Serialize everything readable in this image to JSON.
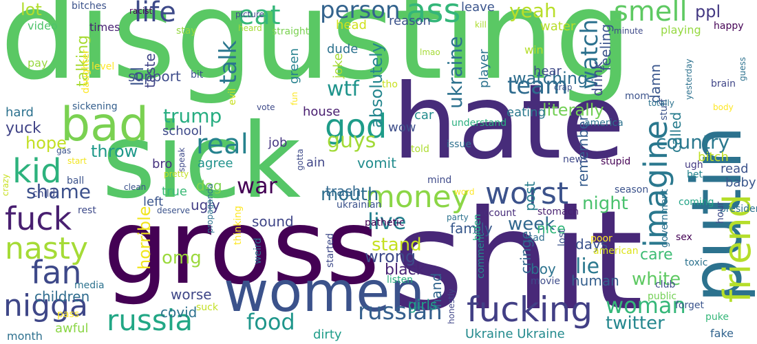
{
  "words": [
    {
      "text": "disgusting",
      "color": "#5ac864"
    },
    {
      "text": "hate",
      "color": "#472c7a"
    },
    {
      "text": "sick",
      "color": "#56c667"
    },
    {
      "text": "gross",
      "color": "#440154"
    },
    {
      "text": "shit",
      "color": "#482878"
    },
    {
      "text": "women",
      "color": "#3b528b"
    },
    {
      "text": "putin",
      "color": "#2c728e"
    },
    {
      "text": "bad",
      "color": "#7ad151"
    },
    {
      "text": "life",
      "color": "#3e4a89"
    },
    {
      "text": "eat",
      "color": "#35b779"
    },
    {
      "text": "person",
      "color": "#33638d"
    },
    {
      "text": "ass",
      "color": "#34b679"
    },
    {
      "text": "smell",
      "color": "#5ec962"
    },
    {
      "text": "fuck",
      "color": "#481f70"
    },
    {
      "text": "nasty",
      "color": "#a5db36"
    },
    {
      "text": "fan",
      "color": "#3e4989"
    },
    {
      "text": "nigga",
      "color": "#3f4788"
    },
    {
      "text": "russia",
      "color": "#22a785"
    },
    {
      "text": "fucking",
      "color": "#423f85"
    },
    {
      "text": "money",
      "color": "#8bd646"
    },
    {
      "text": "imagine",
      "color": "#2a788e"
    },
    {
      "text": "friend",
      "color": "#b5de2b"
    },
    {
      "text": "real",
      "color": "#26828e"
    },
    {
      "text": "god",
      "color": "#1e9c89"
    },
    {
      "text": "worst",
      "color": "#3b528b"
    },
    {
      "text": "kid",
      "color": "#2db27d"
    },
    {
      "text": "talk",
      "color": "#2a768e"
    },
    {
      "text": "trump",
      "color": "#27ad81"
    },
    {
      "text": "team",
      "color": "#2f6b8e"
    },
    {
      "text": "watch",
      "color": "#2c718e"
    },
    {
      "text": "yeah",
      "color": "#b8de29"
    },
    {
      "text": "war",
      "color": "#440154"
    },
    {
      "text": "shame",
      "color": "#3c508b"
    },
    {
      "text": "live",
      "color": "#27808e"
    },
    {
      "text": "food",
      "color": "#1f968b"
    },
    {
      "text": "russian",
      "color": "#355f8d"
    },
    {
      "text": "woman",
      "color": "#35b779"
    },
    {
      "text": "twitter",
      "color": "#24878e"
    },
    {
      "text": "country",
      "color": "#2a788e"
    },
    {
      "text": "omg",
      "color": "#9bd93c"
    },
    {
      "text": "white",
      "color": "#5ec962"
    },
    {
      "text": "guys",
      "color": "#a2da37"
    },
    {
      "text": "wtf",
      "color": "#1f948c"
    },
    {
      "text": "mouth",
      "color": "#2e6f8e"
    },
    {
      "text": "night",
      "color": "#4ac16d"
    },
    {
      "text": "week",
      "color": "#31688e"
    },
    {
      "text": "stand",
      "color": "#c5e021"
    },
    {
      "text": "wrong",
      "color": "#3e4a89"
    },
    {
      "text": "lie",
      "color": "#2a788e"
    },
    {
      "text": "ukraine",
      "color": "#2c718e"
    },
    {
      "text": "absolutely",
      "color": "#24868e"
    },
    {
      "text": "literally",
      "color": "#73d056"
    },
    {
      "text": "yuck",
      "color": "#414487"
    },
    {
      "text": "children",
      "color": "#2f6c8e"
    },
    {
      "text": "hope",
      "color": "#c2df23"
    },
    {
      "text": "throw",
      "color": "#1f998a"
    },
    {
      "text": "lot",
      "color": "#b2dd2d"
    },
    {
      "text": "ppl",
      "color": "#443983"
    },
    {
      "text": "watching",
      "color": "#2e6e8e"
    },
    {
      "text": "lol",
      "color": "#3b528b"
    },
    {
      "text": "talking",
      "color": "#a8db34"
    },
    {
      "text": "support",
      "color": "#3e4c8a"
    },
    {
      "text": "taste",
      "color": "#414487"
    },
    {
      "text": "care",
      "color": "#3dbc74"
    },
    {
      "text": "drink",
      "color": "#3e4989"
    },
    {
      "text": "feeling",
      "color": "#3a548c"
    },
    {
      "text": "damn",
      "color": "#39568c"
    },
    {
      "text": "called",
      "color": "#287c8e"
    },
    {
      "text": "bitch",
      "color": "#c0df25"
    },
    {
      "text": "sound",
      "color": "#404688"
    },
    {
      "text": "ugly",
      "color": "#433e85"
    },
    {
      "text": "trash",
      "color": "#31688e"
    },
    {
      "text": "vomit",
      "color": "#228c8d"
    },
    {
      "text": "dog",
      "color": "#7fd34e"
    },
    {
      "text": "covid",
      "color": "#2c718e"
    },
    {
      "text": "worse",
      "color": "#3f4788"
    },
    {
      "text": "horrible",
      "color": "#f1e51d"
    },
    {
      "text": "post",
      "color": "#287d8e"
    },
    {
      "text": "remember",
      "color": "#365c8d"
    },
    {
      "text": "black",
      "color": "#482475"
    },
    {
      "text": "human",
      "color": "#355f8d"
    },
    {
      "text": "boy",
      "color": "#2c728e"
    },
    {
      "text": "cringe",
      "color": "#31678e"
    },
    {
      "text": "hand",
      "color": "#32658e"
    },
    {
      "text": "family",
      "color": "#38588c"
    },
    {
      "text": "days",
      "color": "#3a538b"
    },
    {
      "text": "girls",
      "color": "#1fa188"
    },
    {
      "text": "nice",
      "color": "#32b67a"
    },
    {
      "text": "dirty",
      "color": "#1e9c89"
    },
    {
      "text": "awful",
      "color": "#8bd646"
    },
    {
      "text": "month",
      "color": "#2d708e"
    },
    {
      "text": "Ukraine Ukraine",
      "color": "#238a8d"
    },
    {
      "text": "fake",
      "color": "#32648e"
    },
    {
      "text": "baby",
      "color": "#39568c"
    },
    {
      "text": "read",
      "color": "#3b528b"
    },
    {
      "text": "hard",
      "color": "#2c718e"
    },
    {
      "text": "school",
      "color": "#3e4a89"
    },
    {
      "text": "house",
      "color": "#481d6f"
    },
    {
      "text": "car",
      "color": "#228c8d"
    },
    {
      "text": "eating",
      "color": "#2a788e"
    },
    {
      "text": "wow",
      "color": "#3d4e8a"
    },
    {
      "text": "job",
      "color": "#453581"
    },
    {
      "text": "agree",
      "color": "#20928c"
    },
    {
      "text": "ain",
      "color": "#404688"
    },
    {
      "text": "left",
      "color": "#3a548c"
    },
    {
      "text": "true",
      "color": "#3aba76"
    },
    {
      "text": "bro",
      "color": "#46337f"
    },
    {
      "text": "sickening",
      "color": "#355f8d"
    },
    {
      "text": "times",
      "color": "#482173"
    },
    {
      "text": "video",
      "color": "#4ec36b"
    },
    {
      "text": "pay",
      "color": "#98d83e"
    },
    {
      "text": "win",
      "color": "#b5de2b"
    },
    {
      "text": "hear",
      "color": "#3e4a89"
    },
    {
      "text": "player",
      "color": "#2c728e"
    },
    {
      "text": "head",
      "color": "#d0e11c"
    },
    {
      "text": "reason",
      "color": "#3b528b"
    },
    {
      "text": "leave",
      "color": "#3a548c"
    },
    {
      "text": "dude",
      "color": "#2c728e"
    },
    {
      "text": "joke",
      "color": "#a8db34"
    },
    {
      "text": "green",
      "color": "#26818e"
    },
    {
      "text": "water",
      "color": "#b8de29"
    },
    {
      "text": "playing",
      "color": "#95d840"
    },
    {
      "text": "happy",
      "color": "#440154"
    },
    {
      "text": "brain",
      "color": "#404688"
    },
    {
      "text": "stuff",
      "color": "#3b528b"
    },
    {
      "text": "america",
      "color": "#2c718e"
    },
    {
      "text": "understand",
      "color": "#29af7f"
    },
    {
      "text": "told",
      "color": "#addc30"
    },
    {
      "text": "issue",
      "color": "#2d708e"
    },
    {
      "text": "news",
      "color": "#3e4989"
    },
    {
      "text": "stupid",
      "color": "#440154"
    },
    {
      "text": "ugh",
      "color": "#443a83"
    },
    {
      "text": "bet",
      "color": "#25848e"
    },
    {
      "text": "coming",
      "color": "#20a386"
    },
    {
      "text": "president",
      "color": "#2c718e"
    },
    {
      "text": "season",
      "color": "#3b528b"
    },
    {
      "text": "stomach",
      "color": "#481f70"
    },
    {
      "text": "account",
      "color": "#472c7a"
    },
    {
      "text": "poor",
      "color": "#fde725"
    },
    {
      "text": "american",
      "color": "#dde318"
    },
    {
      "text": "sad",
      "color": "#2e6e8e"
    },
    {
      "text": "lost",
      "color": "#3b528b"
    },
    {
      "text": "toxic",
      "color": "#2c728e"
    },
    {
      "text": "club",
      "color": "#3e4a89"
    },
    {
      "text": "forget",
      "color": "#3a548c"
    },
    {
      "text": "public",
      "color": "#73d056"
    },
    {
      "text": "movie",
      "color": "#3e4c8a"
    },
    {
      "text": "comment",
      "color": "#238a8d"
    },
    {
      "text": "listen",
      "color": "#29af7f"
    },
    {
      "text": "biden",
      "color": "#22a884"
    },
    {
      "text": "pathetic",
      "color": "#440154"
    },
    {
      "text": "puke",
      "color": "#35b779"
    },
    {
      "text": "honestly",
      "color": "#404688"
    },
    {
      "text": "hour",
      "color": "#3e4a89"
    },
    {
      "text": "sex",
      "color": "#440154"
    },
    {
      "text": "government",
      "color": "#2c718e"
    },
    {
      "text": "mom",
      "color": "#3b528b"
    },
    {
      "text": "minute",
      "color": "#3e4a89"
    },
    {
      "text": "kill",
      "color": "#addc30"
    },
    {
      "text": "lmao",
      "color": "#a5db36"
    },
    {
      "text": "heard",
      "color": "#a5db36"
    },
    {
      "text": "picture",
      "color": "#3e4a89"
    },
    {
      "text": "racist",
      "color": "#440154"
    },
    {
      "text": "bitches",
      "color": "#3b528b"
    },
    {
      "text": "stay",
      "color": "#95d840"
    },
    {
      "text": "straight",
      "color": "#7ad151"
    },
    {
      "text": "bit",
      "color": "#3b528b"
    },
    {
      "text": "evil",
      "color": "#c8e020"
    },
    {
      "text": "level",
      "color": "#fde725"
    },
    {
      "text": "daughter",
      "color": "#fde725"
    },
    {
      "text": "vote",
      "color": "#3e4a89"
    },
    {
      "text": "fun",
      "color": "#fde725"
    },
    {
      "text": "tho",
      "color": "#c8e020"
    },
    {
      "text": "crap",
      "color": "#3b528b"
    },
    {
      "text": "totally",
      "color": "#2c728e"
    },
    {
      "text": "body",
      "color": "#fde725"
    },
    {
      "text": "yesterday",
      "color": "#2c718e"
    },
    {
      "text": "guess",
      "color": "#2c718e"
    },
    {
      "text": "crazy",
      "color": "#c8e020"
    },
    {
      "text": "gas",
      "color": "#3b528b"
    },
    {
      "text": "start",
      "color": "#f1e51d"
    },
    {
      "text": "pretty",
      "color": "#c2df23"
    },
    {
      "text": "speak",
      "color": "#3e4a89"
    },
    {
      "text": "gotta",
      "color": "#3e4a89"
    },
    {
      "text": "ball",
      "color": "#3b528b"
    },
    {
      "text": "child",
      "color": "#3e4a89"
    },
    {
      "text": "clean",
      "color": "#3b528b"
    },
    {
      "text": "rest",
      "color": "#3e4a89"
    },
    {
      "text": "deserve",
      "color": "#3b528b"
    },
    {
      "text": "mind",
      "color": "#3e4a89"
    },
    {
      "text": "word",
      "color": "#fde725"
    },
    {
      "text": "ukrainian",
      "color": "#3b528b"
    },
    {
      "text": "party",
      "color": "#2c728e"
    },
    {
      "text": "propaganda",
      "color": "#2c718e"
    },
    {
      "text": "thinking",
      "color": "#fde725"
    },
    {
      "text": "weird",
      "color": "#2c718e"
    },
    {
      "text": "started",
      "color": "#3e4a89"
    },
    {
      "text": "suck",
      "color": "#c2df23"
    },
    {
      "text": "pass",
      "color": "#fde725"
    },
    {
      "text": "media",
      "color": "#2c728e"
    }
  ]
}
